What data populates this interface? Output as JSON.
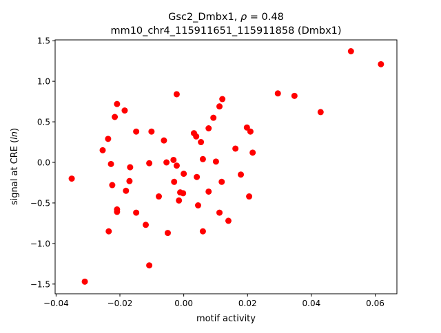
{
  "chart_data": {
    "type": "scatter",
    "title_line1_prefix": "Gsc2_Dmbx1, ",
    "title_rho_symbol": "ρ",
    "title_rho_value": " = 0.48",
    "title_line2": "mm10_chr4_115911651_115911858 (Dmbx1)",
    "xlabel": "motif activity",
    "ylabel_prefix": "signal at CRE (",
    "ylabel_italic": "ln",
    "ylabel_suffix": ")",
    "xlim": [
      -0.0403,
      0.0668
    ],
    "ylim": [
      -1.62,
      1.51
    ],
    "xticks": [
      -0.04,
      -0.02,
      0.0,
      0.02,
      0.04,
      0.06
    ],
    "xtick_labels": [
      "−0.04",
      "−0.02",
      "0.00",
      "0.02",
      "0.04",
      "0.06"
    ],
    "yticks": [
      -1.5,
      -1.0,
      -0.5,
      0.0,
      0.5,
      1.0,
      1.5
    ],
    "ytick_labels": [
      "−1.5",
      "−1.0",
      "−0.5",
      "0.0",
      "0.5",
      "1.0",
      "1.5"
    ],
    "grid": false,
    "marker_color": "#ff0000",
    "points": [
      [
        -0.0351,
        -0.2
      ],
      [
        -0.031,
        -1.47
      ],
      [
        -0.0254,
        0.15
      ],
      [
        -0.0237,
        0.29
      ],
      [
        -0.0228,
        -0.02
      ],
      [
        -0.0235,
        -0.85
      ],
      [
        -0.0224,
        -0.28
      ],
      [
        -0.0216,
        0.56
      ],
      [
        -0.0209,
        0.72
      ],
      [
        -0.0209,
        -0.61
      ],
      [
        -0.0209,
        -0.58
      ],
      [
        -0.0185,
        0.64
      ],
      [
        -0.0181,
        -0.35
      ],
      [
        -0.0168,
        -0.06
      ],
      [
        -0.017,
        -0.23
      ],
      [
        -0.0149,
        0.38
      ],
      [
        -0.0149,
        -0.62
      ],
      [
        -0.0119,
        -0.77
      ],
      [
        -0.0108,
        -0.01
      ],
      [
        -0.0101,
        0.38
      ],
      [
        -0.0108,
        -1.27
      ],
      [
        -0.0078,
        -0.42
      ],
      [
        -0.0062,
        0.27
      ],
      [
        -0.0054,
        0.0
      ],
      [
        -0.005,
        -0.87
      ],
      [
        -0.0032,
        0.03
      ],
      [
        -0.003,
        -0.24
      ],
      [
        -0.0022,
        -0.04
      ],
      [
        -0.0022,
        0.84
      ],
      [
        -0.0015,
        -0.47
      ],
      [
        -0.0011,
        -0.37
      ],
      [
        -0.0002,
        -0.38
      ],
      [
        0.0,
        -0.14
      ],
      [
        0.0032,
        0.36
      ],
      [
        0.0039,
        0.32
      ],
      [
        0.0041,
        -0.18
      ],
      [
        0.0045,
        -0.53
      ],
      [
        0.0054,
        0.25
      ],
      [
        0.006,
        0.04
      ],
      [
        0.006,
        -0.85
      ],
      [
        0.0078,
        0.42
      ],
      [
        0.0078,
        -0.36
      ],
      [
        0.0093,
        0.55
      ],
      [
        0.0101,
        0.01
      ],
      [
        0.0112,
        0.69
      ],
      [
        0.0112,
        -0.62
      ],
      [
        0.0119,
        -0.24
      ],
      [
        0.0121,
        0.78
      ],
      [
        0.014,
        -0.72
      ],
      [
        0.0162,
        0.17
      ],
      [
        0.0179,
        -0.15
      ],
      [
        0.0198,
        0.43
      ],
      [
        0.0205,
        -0.42
      ],
      [
        0.0209,
        0.38
      ],
      [
        0.0216,
        0.12
      ],
      [
        0.0295,
        0.85
      ],
      [
        0.0347,
        0.82
      ],
      [
        0.0429,
        0.62
      ],
      [
        0.0524,
        1.37
      ],
      [
        0.0618,
        1.21
      ]
    ]
  }
}
